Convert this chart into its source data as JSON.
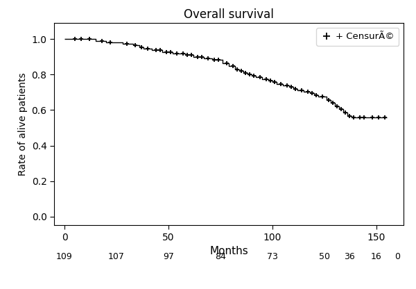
{
  "title": "Overall survival",
  "xlabel": "Months",
  "ylabel": "Rate of alive patients",
  "xlim": [
    -5,
    163
  ],
  "ylim": [
    -0.05,
    1.09
  ],
  "xticks": [
    0,
    50,
    100,
    150
  ],
  "yticks": [
    0.0,
    0.2,
    0.4,
    0.6,
    0.8,
    1.0
  ],
  "background_color": "#ffffff",
  "line_color": "#000000",
  "censure_color": "#000000",
  "legend_label": "+ CensurÃ©",
  "km_steps": [
    [
      0,
      1.0
    ],
    [
      15,
      1.0
    ],
    [
      15,
      0.991
    ],
    [
      20,
      0.991
    ],
    [
      20,
      0.982
    ],
    [
      25,
      0.982
    ],
    [
      28,
      0.982
    ],
    [
      28,
      0.973
    ],
    [
      33,
      0.973
    ],
    [
      33,
      0.964
    ],
    [
      36,
      0.964
    ],
    [
      36,
      0.955
    ],
    [
      38,
      0.955
    ],
    [
      38,
      0.946
    ],
    [
      42,
      0.946
    ],
    [
      42,
      0.937
    ],
    [
      45,
      0.937
    ],
    [
      47,
      0.937
    ],
    [
      47,
      0.928
    ],
    [
      50,
      0.928
    ],
    [
      52,
      0.928
    ],
    [
      52,
      0.919
    ],
    [
      56,
      0.919
    ],
    [
      58,
      0.919
    ],
    [
      58,
      0.91
    ],
    [
      60,
      0.91
    ],
    [
      62,
      0.91
    ],
    [
      62,
      0.901
    ],
    [
      65,
      0.901
    ],
    [
      67,
      0.901
    ],
    [
      67,
      0.892
    ],
    [
      70,
      0.892
    ],
    [
      71,
      0.892
    ],
    [
      71,
      0.883
    ],
    [
      75,
      0.883
    ],
    [
      76,
      0.883
    ],
    [
      76,
      0.865
    ],
    [
      79,
      0.865
    ],
    [
      79,
      0.847
    ],
    [
      82,
      0.847
    ],
    [
      82,
      0.829
    ],
    [
      84,
      0.829
    ],
    [
      84,
      0.82
    ],
    [
      86,
      0.82
    ],
    [
      86,
      0.811
    ],
    [
      88,
      0.811
    ],
    [
      88,
      0.802
    ],
    [
      90,
      0.802
    ],
    [
      90,
      0.793
    ],
    [
      92,
      0.793
    ],
    [
      92,
      0.784
    ],
    [
      95,
      0.784
    ],
    [
      95,
      0.775
    ],
    [
      98,
      0.775
    ],
    [
      98,
      0.766
    ],
    [
      100,
      0.766
    ],
    [
      100,
      0.757
    ],
    [
      102,
      0.757
    ],
    [
      102,
      0.748
    ],
    [
      105,
      0.748
    ],
    [
      105,
      0.739
    ],
    [
      108,
      0.739
    ],
    [
      108,
      0.73
    ],
    [
      110,
      0.73
    ],
    [
      110,
      0.721
    ],
    [
      112,
      0.721
    ],
    [
      112,
      0.712
    ],
    [
      115,
      0.712
    ],
    [
      115,
      0.703
    ],
    [
      118,
      0.703
    ],
    [
      118,
      0.694
    ],
    [
      120,
      0.694
    ],
    [
      120,
      0.685
    ],
    [
      122,
      0.685
    ],
    [
      122,
      0.676
    ],
    [
      125,
      0.676
    ],
    [
      126,
      0.676
    ],
    [
      126,
      0.658
    ],
    [
      128,
      0.658
    ],
    [
      128,
      0.64
    ],
    [
      130,
      0.64
    ],
    [
      130,
      0.622
    ],
    [
      132,
      0.622
    ],
    [
      132,
      0.604
    ],
    [
      134,
      0.604
    ],
    [
      134,
      0.586
    ],
    [
      136,
      0.586
    ],
    [
      136,
      0.568
    ],
    [
      138,
      0.568
    ],
    [
      138,
      0.559
    ],
    [
      140,
      0.559
    ],
    [
      140,
      0.559
    ],
    [
      145,
      0.559
    ],
    [
      145,
      0.559
    ],
    [
      155,
      0.559
    ]
  ],
  "censure_pts": [
    [
      5,
      1.0
    ],
    [
      8,
      1.0
    ],
    [
      12,
      1.0
    ],
    [
      18,
      0.991
    ],
    [
      22,
      0.982
    ],
    [
      30,
      0.973
    ],
    [
      34,
      0.964
    ],
    [
      37,
      0.955
    ],
    [
      40,
      0.946
    ],
    [
      44,
      0.937
    ],
    [
      46,
      0.937
    ],
    [
      49,
      0.928
    ],
    [
      51,
      0.928
    ],
    [
      54,
      0.919
    ],
    [
      57,
      0.919
    ],
    [
      59,
      0.91
    ],
    [
      61,
      0.91
    ],
    [
      64,
      0.901
    ],
    [
      66,
      0.901
    ],
    [
      69,
      0.892
    ],
    [
      72,
      0.883
    ],
    [
      74,
      0.883
    ],
    [
      78,
      0.865
    ],
    [
      81,
      0.847
    ],
    [
      83,
      0.829
    ],
    [
      85,
      0.82
    ],
    [
      87,
      0.811
    ],
    [
      89,
      0.802
    ],
    [
      91,
      0.793
    ],
    [
      94,
      0.784
    ],
    [
      97,
      0.775
    ],
    [
      99,
      0.766
    ],
    [
      101,
      0.757
    ],
    [
      104,
      0.748
    ],
    [
      107,
      0.739
    ],
    [
      109,
      0.73
    ],
    [
      111,
      0.721
    ],
    [
      114,
      0.712
    ],
    [
      117,
      0.703
    ],
    [
      119,
      0.694
    ],
    [
      121,
      0.685
    ],
    [
      124,
      0.676
    ],
    [
      127,
      0.658
    ],
    [
      129,
      0.64
    ],
    [
      131,
      0.622
    ],
    [
      133,
      0.604
    ],
    [
      135,
      0.586
    ],
    [
      137,
      0.568
    ],
    [
      139,
      0.559
    ],
    [
      142,
      0.559
    ],
    [
      144,
      0.559
    ],
    [
      148,
      0.559
    ],
    [
      151,
      0.559
    ],
    [
      154,
      0.559
    ]
  ],
  "at_risk": [
    {
      "x": 0,
      "label": "109"
    },
    {
      "x": 25,
      "label": "107"
    },
    {
      "x": 50,
      "label": "97"
    },
    {
      "x": 75,
      "label": "84"
    },
    {
      "x": 100,
      "label": "73"
    },
    {
      "x": 125,
      "label": "50"
    },
    {
      "x": 137,
      "label": "36"
    },
    {
      "x": 150,
      "label": "16"
    },
    {
      "x": 160,
      "label": "0"
    }
  ]
}
